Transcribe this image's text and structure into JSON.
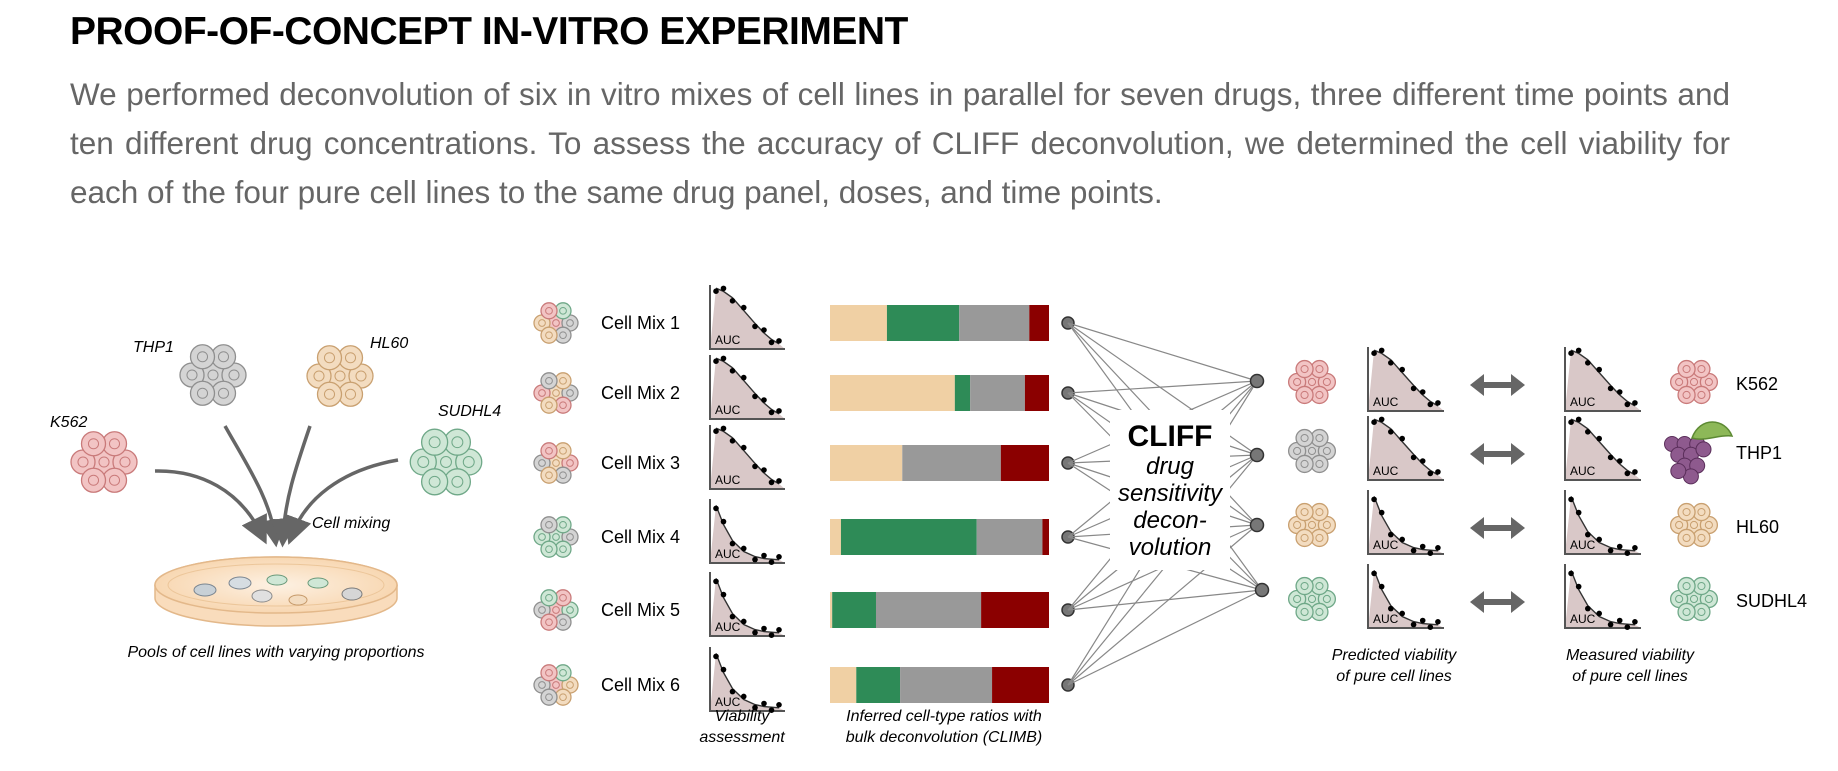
{
  "header": {
    "title": "PROOF-OF-CONCEPT IN-VITRO EXPERIMENT",
    "intro": "We performed deconvolution of six in vitro mixes of cell lines in parallel for seven drugs, three different time points and ten different drug concentrations. To assess the accuracy of CLIFF deconvolution, we determined the cell viability for each of the four pure cell lines to the same drug panel, doses, and time points."
  },
  "colors": {
    "K562": "#f2c4c4",
    "THP1": "#d4d4d4",
    "HL60": "#f3dcc0",
    "SUDHL4": "#cfe7d6",
    "bar_K562": "#8b0000",
    "bar_THP1": "#999999",
    "bar_HL60": "#f0d0a4",
    "bar_SUDHL4": "#2e8b57",
    "auc_fill": "#d9c8c8",
    "arrow": "#666666"
  },
  "mixing": {
    "cell_lines": [
      "K562",
      "THP1",
      "HL60",
      "SUDHL4"
    ],
    "mixing_label": "Cell mixing",
    "caption": "Pools of cell lines with varying proportions"
  },
  "mixes": [
    {
      "label": "Cell Mix 1",
      "ratios": {
        "HL60": 0.26,
        "SUDHL4": 0.33,
        "THP1": 0.32,
        "K562": 0.09
      }
    },
    {
      "label": "Cell Mix 2",
      "ratios": {
        "HL60": 0.57,
        "SUDHL4": 0.07,
        "THP1": 0.25,
        "K562": 0.11
      }
    },
    {
      "label": "Cell Mix 3",
      "ratios": {
        "HL60": 0.33,
        "SUDHL4": 0.0,
        "THP1": 0.45,
        "K562": 0.22
      }
    },
    {
      "label": "Cell Mix 4",
      "ratios": {
        "HL60": 0.05,
        "SUDHL4": 0.62,
        "THP1": 0.3,
        "K562": 0.03
      }
    },
    {
      "label": "Cell Mix 5",
      "ratios": {
        "HL60": 0.01,
        "SUDHL4": 0.2,
        "THP1": 0.48,
        "K562": 0.31
      }
    },
    {
      "label": "Cell Mix 6",
      "ratios": {
        "HL60": 0.12,
        "SUDHL4": 0.2,
        "THP1": 0.42,
        "K562": 0.26
      }
    }
  ],
  "auc_label": "AUC",
  "captions": {
    "viability_1": "Viability",
    "viability_2": "assessment",
    "ratios_1": "Inferred cell-type ratios with",
    "ratios_2": "bulk deconvolution (CLIMB)",
    "predicted_1": "Predicted viability",
    "predicted_2": "of pure cell lines",
    "measured_1": "Measured viability",
    "measured_2": "of pure cell lines"
  },
  "cliff": {
    "name": "CLIFF",
    "lines": [
      "drug",
      "sensitivity",
      "decon-",
      "volution"
    ]
  },
  "pure_lines": [
    "K562",
    "THP1",
    "HL60",
    "SUDHL4"
  ]
}
